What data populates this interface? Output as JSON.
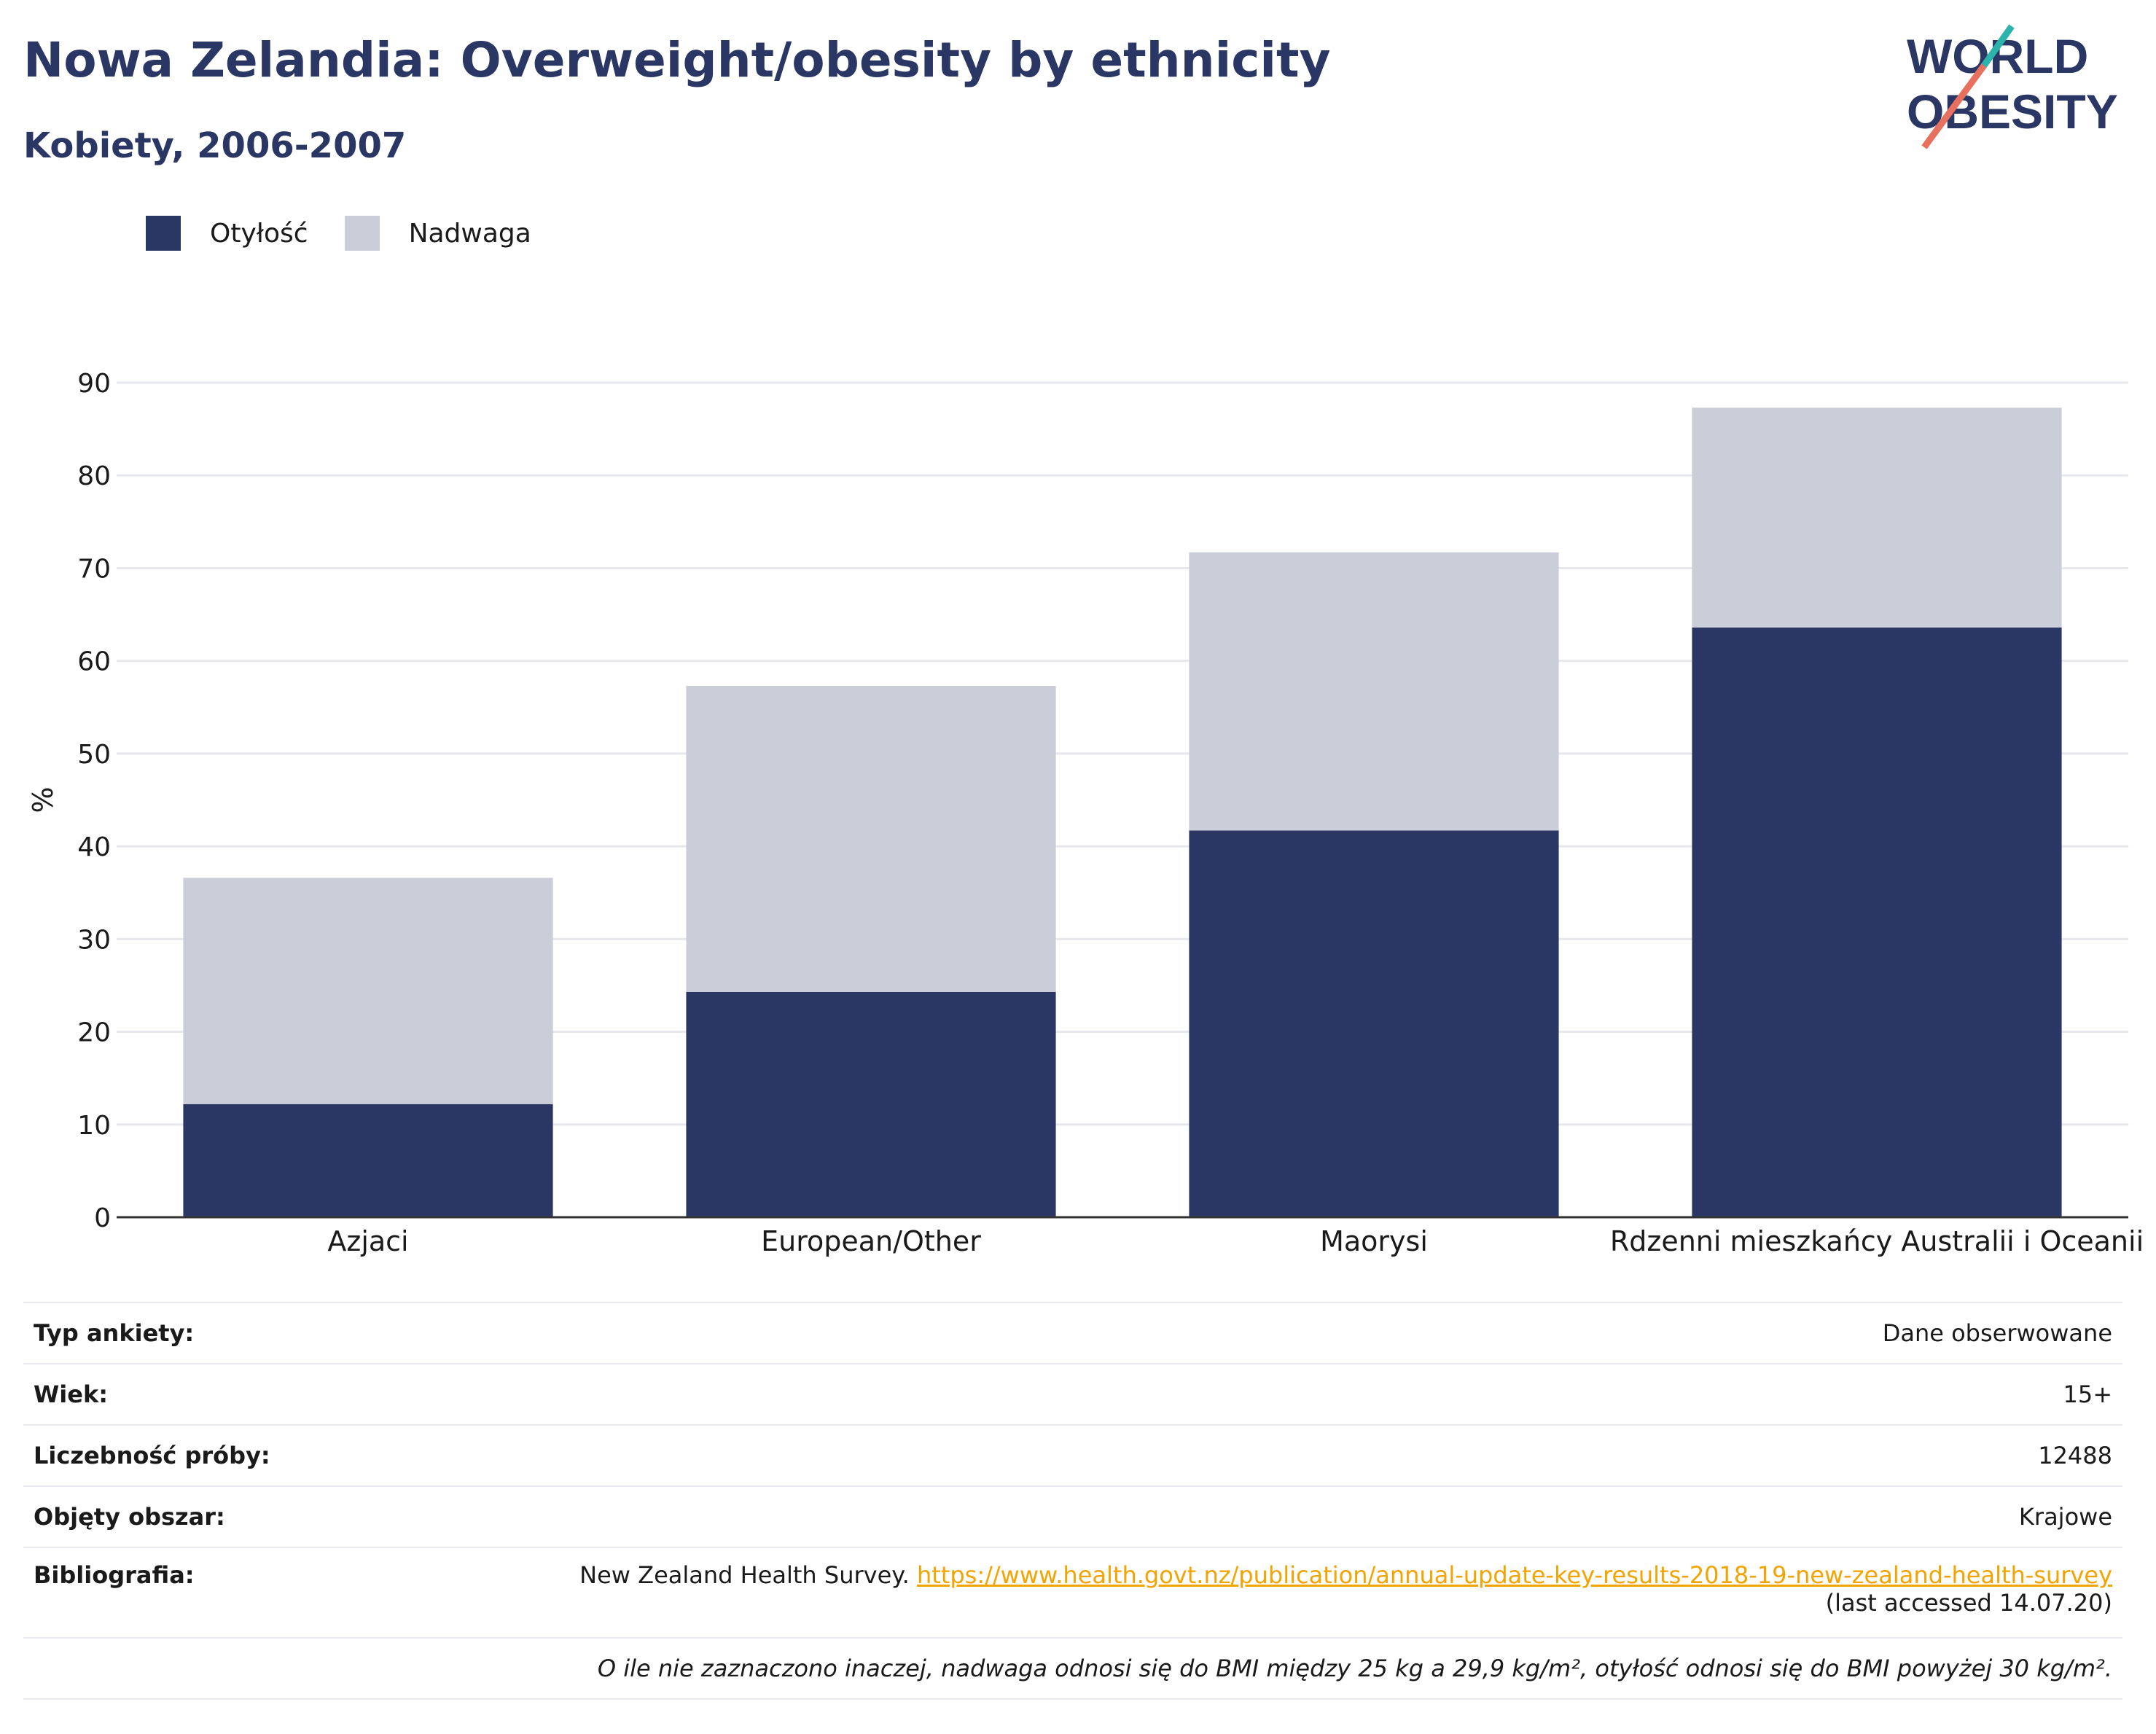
{
  "header": {
    "title": "Nowa Zelandia: Overweight/obesity by ethnicity",
    "subtitle": "Kobiety, 2006-2007",
    "logo_line1": "WORLD",
    "logo_line2": "OBESITY"
  },
  "colors": {
    "obesity": "#2a3764",
    "overweight": "#cbcdd8",
    "title": "#2a3764",
    "link": "#f3a400",
    "logo_teal": "#2bb3ac",
    "logo_coral": "#e8705f"
  },
  "chart_data": {
    "type": "bar",
    "stacked": true,
    "categories": [
      "Azjaci",
      "European/Other",
      "Maorysi",
      "Rdzenni mieszkańcy Australii i Oceanii"
    ],
    "series": [
      {
        "name": "Otyłość",
        "values": [
          12.2,
          24.3,
          41.7,
          63.6
        ]
      },
      {
        "name": "Nadwaga",
        "values": [
          24.4,
          33.0,
          30.0,
          23.7
        ]
      }
    ],
    "ylabel": "%",
    "yticks": [
      0,
      10,
      20,
      30,
      40,
      50,
      60,
      70,
      80,
      90
    ],
    "ylim": [
      0,
      90
    ],
    "grid": true,
    "legend_position": "top-left"
  },
  "info": {
    "survey_type_label": "Typ ankiety:",
    "survey_type_value": "Dane obserwowane",
    "age_label": "Wiek:",
    "age_value": "15+",
    "sample_label": "Liczebność próby:",
    "sample_value": "12488",
    "area_label": "Objęty obszar:",
    "area_value": "Krajowe",
    "biblio_label": "Bibliografia:",
    "biblio_source": "New Zealand Health Survey. ",
    "biblio_url": "https://www.health.govt.nz/publication/annual-update-key-results-2018-19-new-zealand-health-survey",
    "biblio_accessed": "(last accessed 14.07.20)",
    "note": "O ile nie zaznaczono inaczej, nadwaga odnosi się do BMI między 25 kg a 29,9 kg/m², otyłość odnosi się do BMI powyżej 30 kg/m²."
  }
}
